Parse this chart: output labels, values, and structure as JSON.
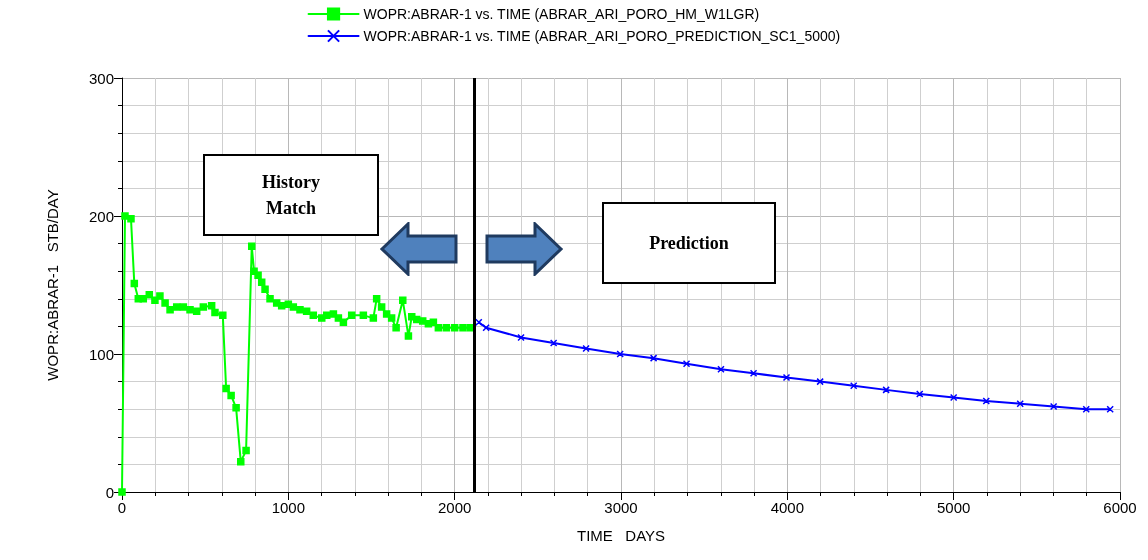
{
  "chart_data": {
    "type": "line",
    "xlabel": "TIME   DAYS",
    "ylabel": "WOPR:ABRAR-1   STB/DAY",
    "xlim": [
      0,
      6000
    ],
    "xticks": [
      0,
      1000,
      2000,
      3000,
      4000,
      5000,
      6000
    ],
    "ylim": [
      0,
      300
    ],
    "yticks": [
      0,
      100,
      200,
      300
    ],
    "grid": true,
    "legend": "top",
    "line_style": "solid",
    "series": [
      {
        "name": "WOPR:ABRAR-1 vs. TIME (ABRAR_ARI_PORO_HM_W1LGR)",
        "color": "#00ff00",
        "marker": "square",
        "x": [
          0,
          18,
          54,
          74,
          98,
          128,
          164,
          198,
          228,
          259,
          289,
          329,
          369,
          409,
          449,
          489,
          539,
          559,
          606,
          626,
          656,
          686,
          714,
          746,
          780,
          794,
          818,
          840,
          860,
          890,
          930,
          960,
          1000,
          1030,
          1070,
          1110,
          1150,
          1201,
          1231,
          1271,
          1301,
          1331,
          1381,
          1451,
          1511,
          1531,
          1561,
          1591,
          1621,
          1648,
          1688,
          1722,
          1742,
          1772,
          1808,
          1842,
          1872,
          1902,
          1950,
          2000,
          2050,
          2095
        ],
        "values": [
          0,
          200,
          198,
          151,
          140,
          140,
          143,
          139,
          142,
          137,
          132,
          134,
          134,
          132,
          131,
          134,
          135,
          130,
          128,
          75,
          70,
          61,
          22,
          30,
          178,
          160,
          157,
          152,
          147,
          140,
          137,
          135,
          136,
          134,
          132,
          131,
          128,
          126,
          128,
          129,
          126,
          123,
          128,
          128,
          126,
          140,
          134,
          129,
          126,
          119,
          139,
          113,
          127,
          125,
          124,
          122,
          123,
          119,
          119,
          119,
          119,
          119
        ]
      },
      {
        "name": "WOPR:ABRAR-1 vs. TIME (ABRAR_ARI_PORO_PREDICTION_SC1_5000)",
        "color": "#0000ff",
        "marker": "cross",
        "x": [
          2145,
          2189,
          2399,
          2595,
          2790,
          2995,
          3196,
          3394,
          3601,
          3797,
          3995,
          4197,
          4399,
          4594,
          4796,
          5000,
          5196,
          5400,
          5601,
          5797,
          5941
        ],
        "values": [
          123,
          119,
          112,
          108,
          104,
          100,
          97,
          93,
          89,
          86,
          83,
          80,
          77,
          74,
          71,
          68.5,
          66,
          64,
          62,
          60,
          60
        ]
      }
    ],
    "ref_lines": [
      {
        "axis": "x",
        "value": 2118,
        "color": "#000000"
      }
    ],
    "annotations": [
      "History Match",
      "Prediction"
    ]
  }
}
